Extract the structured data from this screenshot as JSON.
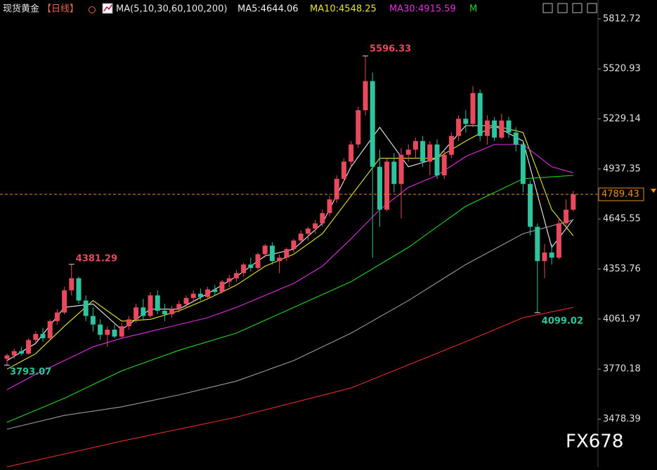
{
  "chart_data": {
    "type": "candlestick",
    "title": "现货黄金",
    "period": "【日线】",
    "indicator": "MA(5,10,30,60,100,200)",
    "watermark": "FX678",
    "up_color": "#e8495c",
    "down_color": "#2fc39e",
    "ylim": [
      3198,
      5841
    ],
    "yticks": [
      5812.72,
      5520.93,
      5229.14,
      4937.35,
      4645.55,
      4353.76,
      4061.97,
      3770.18,
      3478.39
    ],
    "ohlc": [
      [
        3830,
        3860,
        3793.07,
        3850
      ],
      [
        3850,
        3890,
        3830,
        3875
      ],
      [
        3875,
        3900,
        3850,
        3860
      ],
      [
        3860,
        3950,
        3855,
        3940
      ],
      [
        3940,
        3990,
        3920,
        3975
      ],
      [
        3975,
        4010,
        3930,
        3950
      ],
      [
        3950,
        4060,
        3945,
        4050
      ],
      [
        4050,
        4120,
        4030,
        4100
      ],
      [
        4100,
        4250,
        4090,
        4230
      ],
      [
        4230,
        4381.29,
        4200,
        4300
      ],
      [
        4300,
        4310,
        4150,
        4170
      ],
      [
        4170,
        4200,
        4050,
        4080
      ],
      [
        4080,
        4130,
        3990,
        4030
      ],
      [
        4030,
        4060,
        3940,
        3970
      ],
      [
        3970,
        4020,
        3900,
        4000
      ],
      [
        4000,
        4030,
        3950,
        3960
      ],
      [
        3960,
        4040,
        3950,
        4020
      ],
      [
        4020,
        4080,
        4000,
        4060
      ],
      [
        4060,
        4150,
        4040,
        4130
      ],
      [
        4130,
        4180,
        4060,
        4080
      ],
      [
        4080,
        4220,
        4070,
        4200
      ],
      [
        4200,
        4230,
        4090,
        4110
      ],
      [
        4110,
        4150,
        4050,
        4090
      ],
      [
        4090,
        4140,
        4070,
        4120
      ],
      [
        4120,
        4170,
        4100,
        4150
      ],
      [
        4150,
        4200,
        4130,
        4185
      ],
      [
        4185,
        4230,
        4160,
        4210
      ],
      [
        4210,
        4240,
        4170,
        4190
      ],
      [
        4190,
        4250,
        4180,
        4235
      ],
      [
        4235,
        4260,
        4200,
        4220
      ],
      [
        4220,
        4290,
        4210,
        4280
      ],
      [
        4280,
        4320,
        4250,
        4300
      ],
      [
        4300,
        4350,
        4280,
        4330
      ],
      [
        4330,
        4390,
        4310,
        4380
      ],
      [
        4380,
        4420,
        4340,
        4360
      ],
      [
        4360,
        4450,
        4350,
        4440
      ],
      [
        4440,
        4500,
        4420,
        4490
      ],
      [
        4490,
        4510,
        4380,
        4400
      ],
      [
        4400,
        4440,
        4330,
        4420
      ],
      [
        4420,
        4480,
        4400,
        4470
      ],
      [
        4470,
        4530,
        4450,
        4520
      ],
      [
        4520,
        4580,
        4500,
        4560
      ],
      [
        4560,
        4600,
        4520,
        4590
      ],
      [
        4590,
        4640,
        4560,
        4620
      ],
      [
        4620,
        4700,
        4600,
        4680
      ],
      [
        4680,
        4780,
        4660,
        4760
      ],
      [
        4760,
        4900,
        4740,
        4880
      ],
      [
        4880,
        5000,
        4860,
        4980
      ],
      [
        4980,
        5100,
        4950,
        5080
      ],
      [
        5080,
        5300,
        5060,
        5280
      ],
      [
        5280,
        5596.33,
        5250,
        5450
      ],
      [
        5450,
        5500,
        4420,
        4950
      ],
      [
        4950,
        5050,
        4600,
        4700
      ],
      [
        4700,
        5000,
        4690,
        4980
      ],
      [
        4980,
        5030,
        4800,
        4850
      ],
      [
        4850,
        5060,
        4650,
        5020
      ],
      [
        5020,
        5080,
        4980,
        5050
      ],
      [
        5050,
        5120,
        5000,
        5100
      ],
      [
        5100,
        5130,
        4950,
        4980
      ],
      [
        4980,
        5100,
        4900,
        5080
      ],
      [
        5080,
        5110,
        4880,
        4900
      ],
      [
        4900,
        5050,
        4880,
        5020
      ],
      [
        5020,
        5150,
        5000,
        5130
      ],
      [
        5130,
        5250,
        5100,
        5230
      ],
      [
        5230,
        5280,
        5150,
        5200
      ],
      [
        5200,
        5420,
        5180,
        5380
      ],
      [
        5380,
        5400,
        5100,
        5130
      ],
      [
        5130,
        5250,
        5080,
        5220
      ],
      [
        5220,
        5240,
        5100,
        5120
      ],
      [
        5120,
        5260,
        5110,
        5220
      ],
      [
        5220,
        5240,
        5120,
        5150
      ],
      [
        5150,
        5180,
        5040,
        5080
      ],
      [
        5080,
        5100,
        4800,
        4850
      ],
      [
        4850,
        4870,
        4550,
        4600
      ],
      [
        4600,
        4620,
        4099.02,
        4400
      ],
      [
        4400,
        4500,
        4300,
        4450
      ],
      [
        4450,
        4500,
        4380,
        4420
      ],
      [
        4420,
        4650,
        4410,
        4620
      ],
      [
        4620,
        4760,
        4600,
        4700
      ],
      [
        4700,
        4810,
        4690,
        4789.43
      ]
    ],
    "ma_lines": [
      {
        "label": "MA5:4644.06",
        "color": "#f0f0f0",
        "x": [
          0,
          4,
          8,
          12,
          16,
          20,
          24,
          28,
          32,
          36,
          40,
          44,
          48,
          52,
          56,
          60,
          64,
          68,
          72,
          76,
          79
        ],
        "values": [
          3820,
          3920,
          4130,
          4150,
          4000,
          4120,
          4120,
          4210,
          4310,
          4430,
          4470,
          4620,
          4950,
          5180,
          4950,
          5000,
          5190,
          5190,
          5100,
          4480,
          4644.06
        ]
      },
      {
        "label": "MA10:4548.25",
        "color": "#e6e62a",
        "x": [
          0,
          4,
          8,
          12,
          16,
          20,
          24,
          28,
          32,
          36,
          40,
          44,
          48,
          52,
          56,
          60,
          64,
          68,
          72,
          76,
          79
        ],
        "values": [
          3770,
          3860,
          4020,
          4170,
          4050,
          4060,
          4110,
          4180,
          4260,
          4370,
          4440,
          4560,
          4780,
          5000,
          5000,
          5000,
          5100,
          5190,
          5150,
          4700,
          4548.25
        ]
      },
      {
        "label": "MA30:4915.59",
        "color": "#e22ee0",
        "x": [
          0,
          4,
          8,
          12,
          16,
          20,
          24,
          28,
          32,
          36,
          40,
          44,
          48,
          52,
          56,
          60,
          64,
          68,
          72,
          76,
          79
        ],
        "values": [
          3650,
          3740,
          3820,
          3900,
          3950,
          3990,
          4030,
          4070,
          4130,
          4200,
          4270,
          4370,
          4530,
          4700,
          4830,
          4900,
          5010,
          5080,
          5080,
          4950,
          4915.59
        ]
      },
      {
        "label": "M",
        "color": "#22d822",
        "x": [
          0,
          8,
          16,
          24,
          32,
          40,
          48,
          56,
          64,
          72,
          79
        ],
        "values": [
          3460,
          3600,
          3760,
          3880,
          3980,
          4130,
          4280,
          4480,
          4720,
          4880,
          4900
        ]
      },
      {
        "color": "#9a9a9a",
        "x": [
          0,
          8,
          16,
          24,
          32,
          40,
          48,
          56,
          64,
          72,
          79
        ],
        "values": [
          3420,
          3500,
          3550,
          3620,
          3700,
          3820,
          3980,
          4170,
          4380,
          4560,
          4640
        ]
      },
      {
        "color": "#e82a2a",
        "x": [
          0,
          16,
          32,
          48,
          64,
          72,
          79
        ],
        "values": [
          3200,
          3350,
          3490,
          3660,
          3930,
          4070,
          4130
        ]
      }
    ]
  }
}
